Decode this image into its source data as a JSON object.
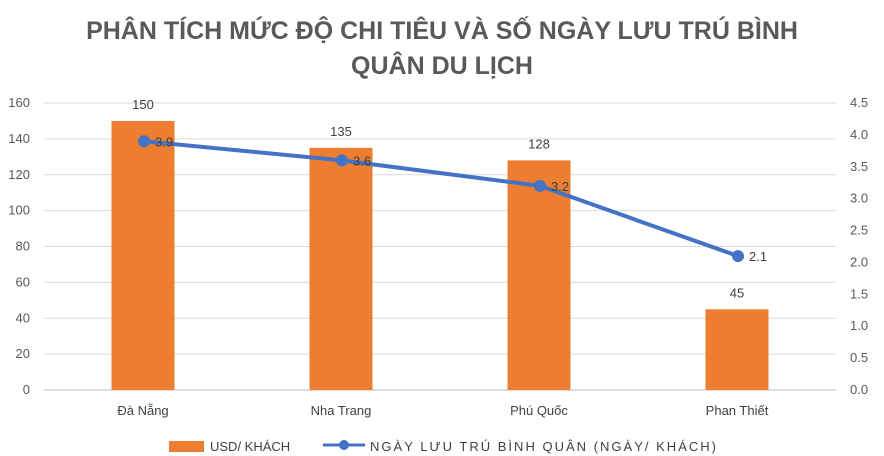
{
  "chart_data": {
    "type": "bar",
    "title_lines": [
      "PHÂN TÍCH MỨC ĐỘ CHI TIÊU VÀ SỐ NGÀY LƯU TRÚ BÌNH",
      "QUÂN DU LỊCH"
    ],
    "categories": [
      "Đà Nẵng",
      "Nha Trang",
      "Phú Quốc",
      "Phan Thiết"
    ],
    "series": [
      {
        "name": "USD/ KHÁCH",
        "type": "bar",
        "axis": "left",
        "values": [
          150,
          135,
          128,
          45
        ],
        "color": "#ED7D31",
        "labels": [
          "150",
          "135",
          "128",
          "45"
        ]
      },
      {
        "name": "NGÀY LƯU TRÚ BÌNH QUÂN (NGÀY/ KHÁCH)",
        "type": "line",
        "axis": "right",
        "values": [
          3.9,
          3.6,
          3.2,
          2.1
        ],
        "color": "#4472C4",
        "labels": [
          "3.9",
          "3.6",
          "3.2",
          "2.1"
        ]
      }
    ],
    "y_left": {
      "min": 0,
      "max": 160,
      "step": 20,
      "ticks": [
        "0",
        "20",
        "40",
        "60",
        "80",
        "100",
        "120",
        "140",
        "160"
      ]
    },
    "y_right": {
      "min": 0,
      "max": 4.5,
      "step": 0.5,
      "ticks": [
        "0.0",
        "0.5",
        "1.0",
        "1.5",
        "2.0",
        "2.5",
        "3.0",
        "3.5",
        "4.0",
        "4.5"
      ]
    },
    "grid": true,
    "legend_position": "bottom"
  }
}
